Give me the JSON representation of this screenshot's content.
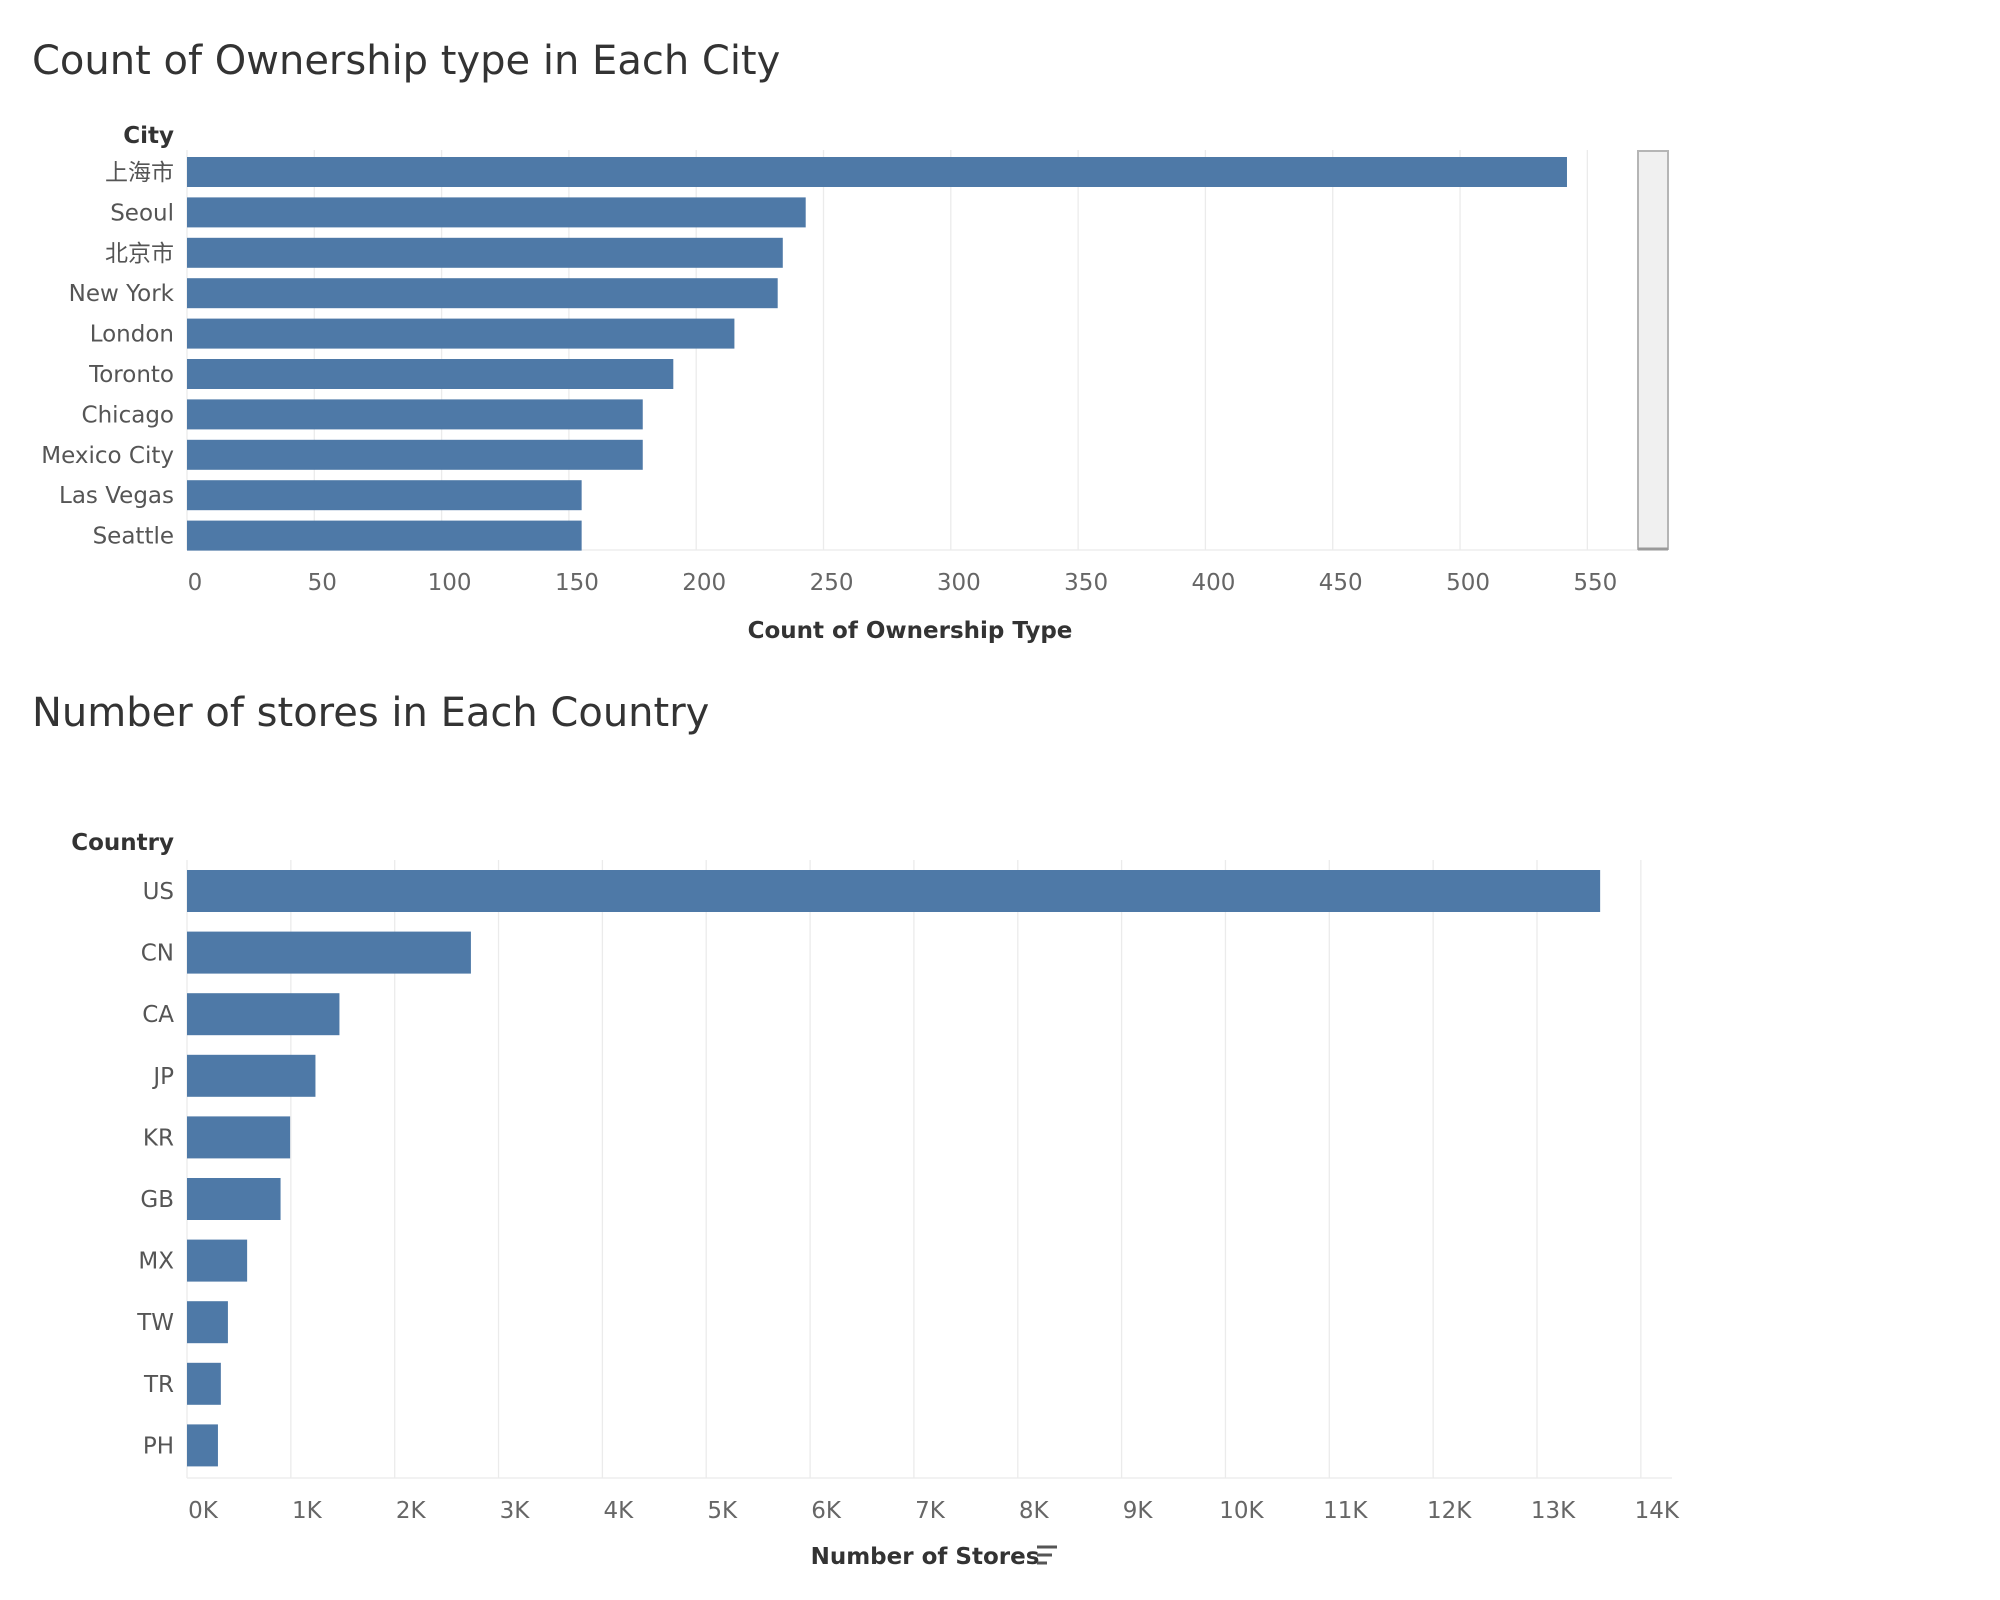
{
  "chart_data": [
    {
      "type": "bar",
      "orientation": "horizontal",
      "title": "Count of Ownership type in Each City",
      "ylabel": "City",
      "xlabel": "Count of Ownership Type",
      "categories": [
        "上海市",
        "Seoul",
        "北京市",
        "New York",
        "London",
        "Toronto",
        "Chicago",
        "Mexico City",
        "Las Vegas",
        "Seattle"
      ],
      "values": [
        542,
        243,
        234,
        232,
        215,
        191,
        179,
        179,
        155,
        155
      ],
      "xlim": [
        0,
        575
      ],
      "ticks": [
        0,
        50,
        100,
        150,
        200,
        250,
        300,
        350,
        400,
        450,
        500,
        550
      ],
      "tick_labels": [
        "0",
        "50",
        "100",
        "150",
        "200",
        "250",
        "300",
        "350",
        "400",
        "450",
        "500",
        "550"
      ],
      "grid": true,
      "color": "#4e79a7",
      "has_scrollbar": true
    },
    {
      "type": "bar",
      "orientation": "horizontal",
      "title": "Number of stores in Each Country",
      "ylabel": "Country",
      "xlabel": "Number of Stores",
      "categories": [
        "US",
        "CN",
        "CA",
        "JP",
        "KR",
        "GB",
        "MX",
        "TW",
        "TR",
        "PH"
      ],
      "values": [
        13608,
        2734,
        1468,
        1237,
        993,
        901,
        579,
        394,
        326,
        298
      ],
      "xlim": [
        0,
        14300
      ],
      "ticks": [
        0,
        1000,
        2000,
        3000,
        4000,
        5000,
        6000,
        7000,
        8000,
        9000,
        10000,
        11000,
        12000,
        13000,
        14000
      ],
      "tick_labels": [
        "0K",
        "1K",
        "2K",
        "3K",
        "4K",
        "5K",
        "6K",
        "7K",
        "8K",
        "9K",
        "10K",
        "11K",
        "12K",
        "13K",
        "14K"
      ],
      "grid": true,
      "color": "#4e79a7",
      "sort_icon": "sort-descending-icon"
    }
  ]
}
